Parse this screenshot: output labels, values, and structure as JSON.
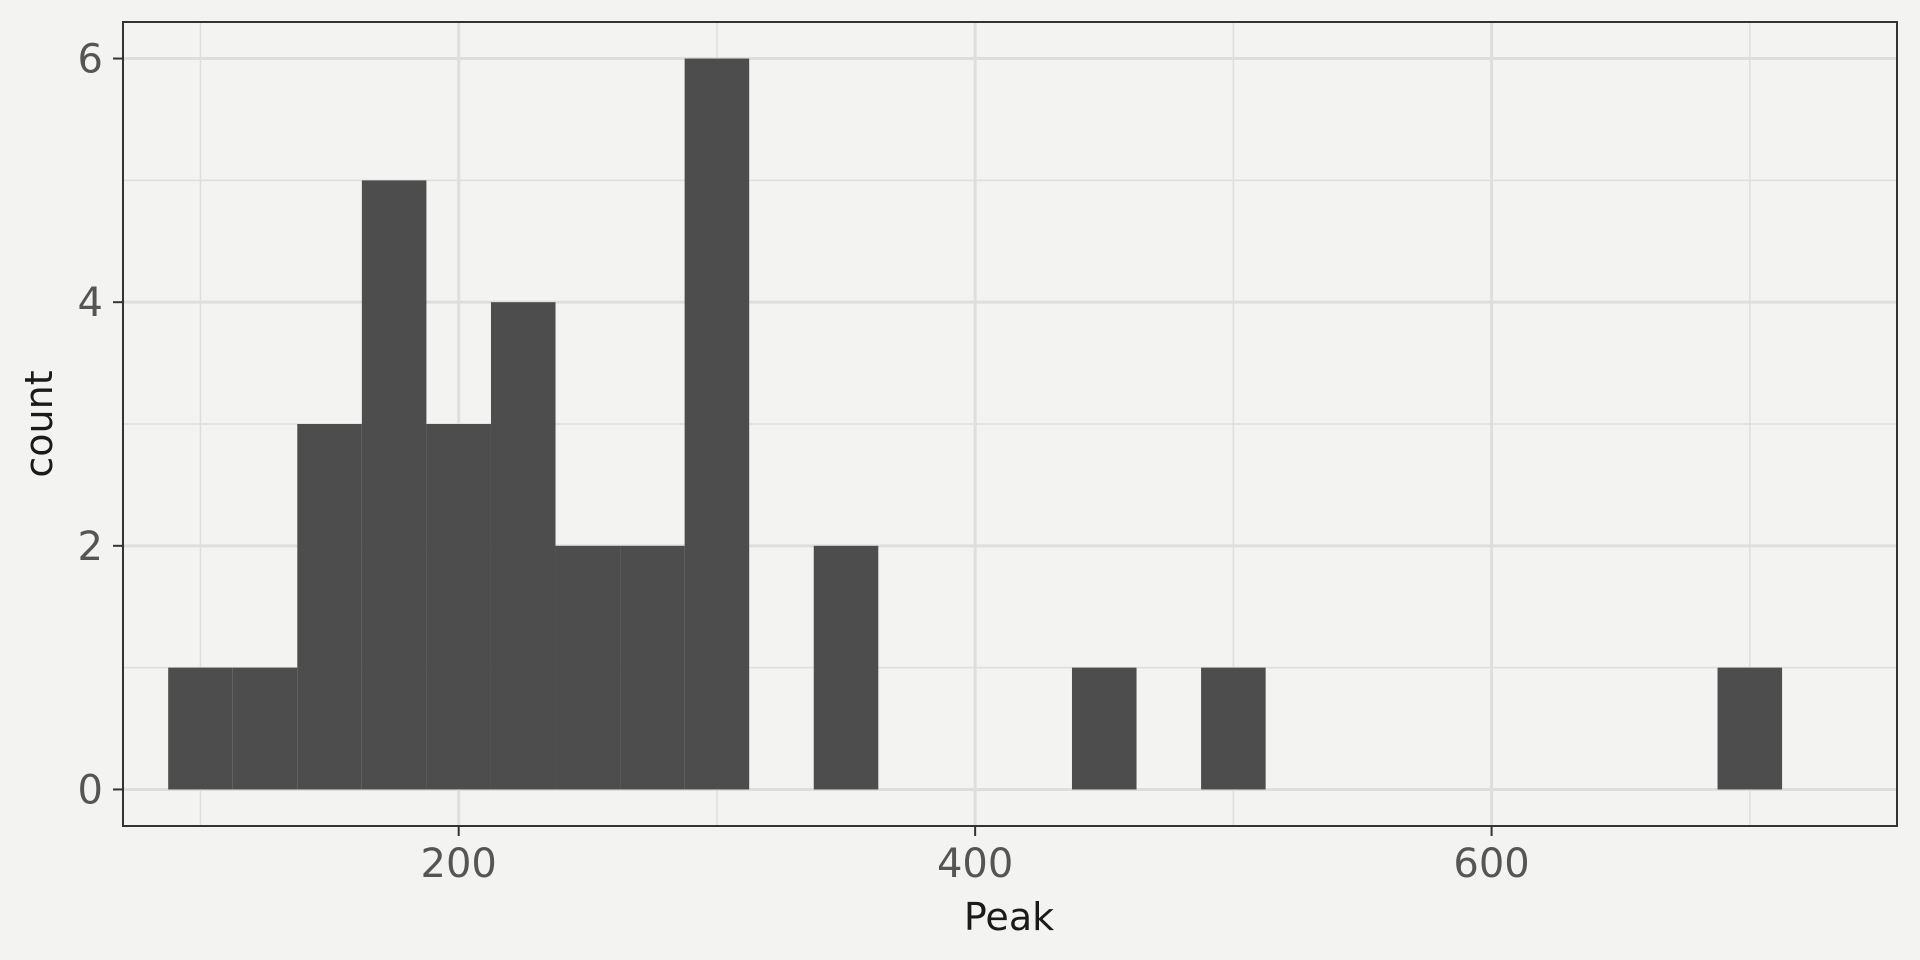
{
  "chart_data": {
    "type": "bar",
    "subtype": "histogram",
    "xlabel": "Peak",
    "ylabel": "count",
    "xlim": [
      70,
      757
    ],
    "ylim": [
      -0.3,
      6.3
    ],
    "x_ticks": [
      200,
      400,
      600
    ],
    "x_minor_ticks": [
      100,
      300,
      500,
      700
    ],
    "y_ticks": [
      0,
      2,
      4,
      6
    ],
    "y_minor_ticks": [
      1,
      3,
      5
    ],
    "grid": true,
    "bar_color": "#4d4d4d",
    "background": "#f3f3f1",
    "grid_color": "#dededc",
    "bins": [
      {
        "x0": 87.5,
        "x1": 112.5,
        "count": 1
      },
      {
        "x0": 112.5,
        "x1": 137.5,
        "count": 1
      },
      {
        "x0": 137.5,
        "x1": 162.5,
        "count": 3
      },
      {
        "x0": 162.5,
        "x1": 187.5,
        "count": 5
      },
      {
        "x0": 187.5,
        "x1": 212.5,
        "count": 3
      },
      {
        "x0": 212.5,
        "x1": 237.5,
        "count": 4
      },
      {
        "x0": 237.5,
        "x1": 262.5,
        "count": 2
      },
      {
        "x0": 262.5,
        "x1": 287.5,
        "count": 2
      },
      {
        "x0": 287.5,
        "x1": 312.5,
        "count": 6
      },
      {
        "x0": 337.5,
        "x1": 362.5,
        "count": 2
      },
      {
        "x0": 437.5,
        "x1": 462.5,
        "count": 1
      },
      {
        "x0": 487.5,
        "x1": 512.5,
        "count": 1
      },
      {
        "x0": 687.5,
        "x1": 712.5,
        "count": 1
      }
    ]
  }
}
